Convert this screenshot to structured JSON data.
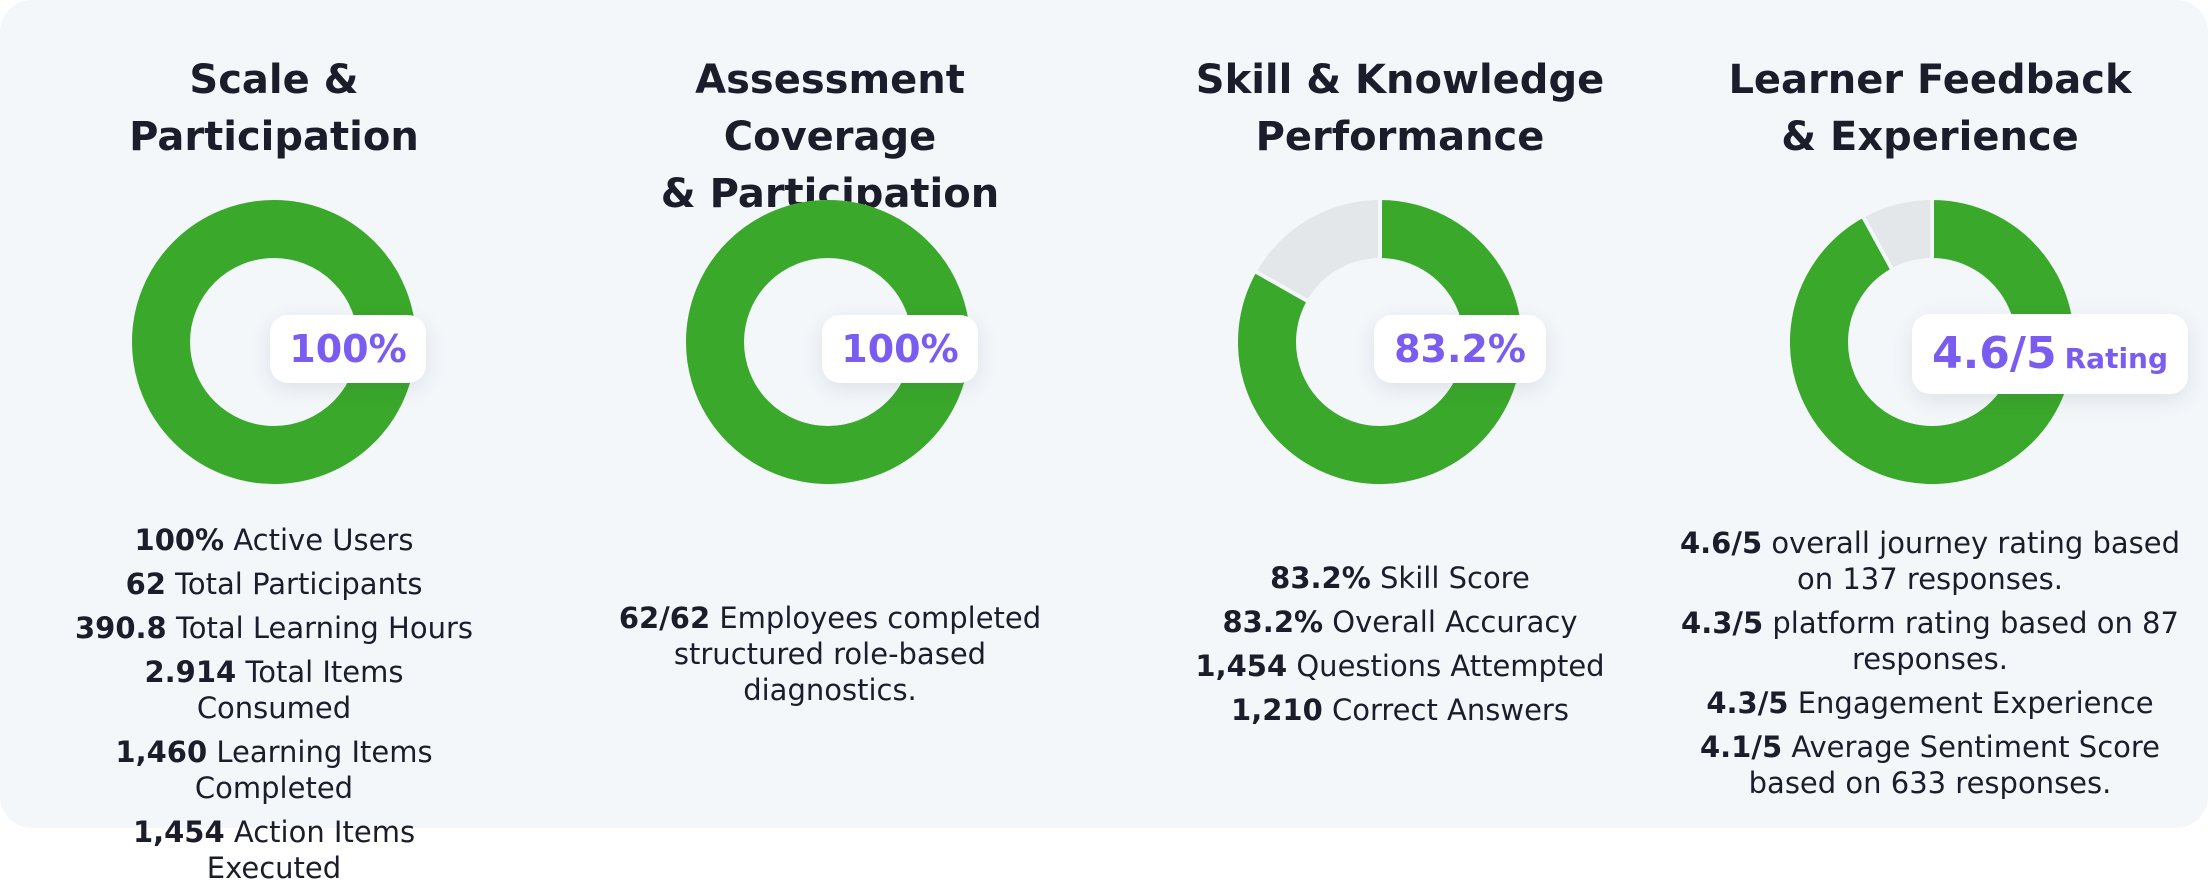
{
  "colors": {
    "background": "#f3f7fa",
    "ring_fill": "#3aa82a",
    "ring_track": "#e4e7ea",
    "accent_text": "#7b5cf0",
    "body_text": "#1b1d2a"
  },
  "columns": [
    {
      "title": "Scale &\nParticipation",
      "donut_percent": 100,
      "pill_value": "100%",
      "pill_unit": "",
      "stats": [
        {
          "value": "100%",
          "label": "Active Users"
        },
        {
          "value": "62",
          "label": "Total Participants"
        },
        {
          "value": "390.8",
          "label": "Total Learning Hours"
        },
        {
          "value": "2.914",
          "label": "Total Items Consumed"
        },
        {
          "value": "1,460",
          "label": "Learning Items Completed"
        },
        {
          "value": "1,454",
          "label": "Action Items Executed"
        }
      ]
    },
    {
      "title": "Assessment Coverage\n& Participation",
      "donut_percent": 100,
      "pill_value": "100%",
      "pill_unit": "",
      "stats": [
        {
          "value": "62/62",
          "label": "Employees completed\nstructured role-based\ndiagnostics."
        }
      ]
    },
    {
      "title": "Skill & Knowledge\nPerformance",
      "donut_percent": 83.2,
      "pill_value": "83.2%",
      "pill_unit": "",
      "stats": [
        {
          "value": "83.2%",
          "label": "Skill Score"
        },
        {
          "value": "83.2%",
          "label": "Overall Accuracy"
        },
        {
          "value": "1,454",
          "label": "Questions Attempted"
        },
        {
          "value": "1,210",
          "label": "Correct Answers"
        }
      ]
    },
    {
      "title": "Learner Feedback\n& Experience",
      "donut_percent": 92,
      "pill_value": "4.6/5",
      "pill_unit": "Rating",
      "stats": [
        {
          "value": "4.6/5",
          "label": "overall journey rating based\non 137 responses."
        },
        {
          "value": "4.3/5",
          "label": "platform rating based on 87\nresponses."
        },
        {
          "value": "4.3/5",
          "label": "Engagement Experience"
        },
        {
          "value": "4.1/5",
          "label": "Average Sentiment Score\nbased on 633 responses."
        }
      ]
    }
  ]
}
